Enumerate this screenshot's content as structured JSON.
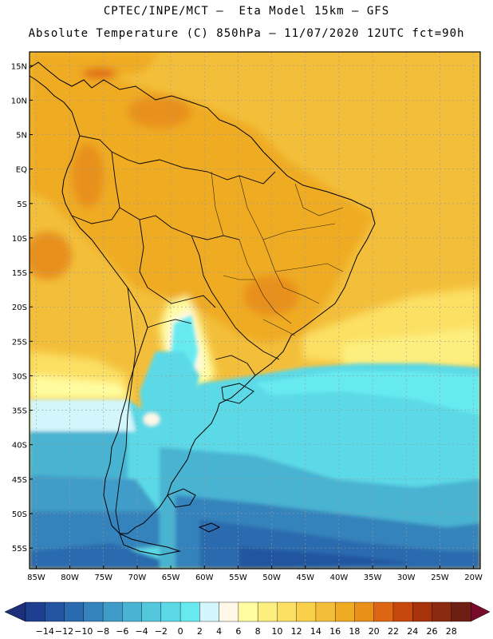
{
  "header": {
    "line1": "CPTEC/INPE/MCT –  Eta Model 15km – GFS",
    "line2": "Absolute Temperature (C) 850hPa – 11/07/2020 12UTC fct=90h"
  },
  "map": {
    "lon_range": [
      -86,
      -19
    ],
    "lat_range": [
      -58,
      17
    ],
    "lat_ticks": [
      {
        "value": 15,
        "label": "15N"
      },
      {
        "value": 10,
        "label": "10N"
      },
      {
        "value": 5,
        "label": "5N"
      },
      {
        "value": 0,
        "label": "EQ"
      },
      {
        "value": -5,
        "label": "5S"
      },
      {
        "value": -10,
        "label": "10S"
      },
      {
        "value": -15,
        "label": "15S"
      },
      {
        "value": -20,
        "label": "20S"
      },
      {
        "value": -25,
        "label": "25S"
      },
      {
        "value": -30,
        "label": "30S"
      },
      {
        "value": -35,
        "label": "35S"
      },
      {
        "value": -40,
        "label": "40S"
      },
      {
        "value": -45,
        "label": "45S"
      },
      {
        "value": -50,
        "label": "50S"
      },
      {
        "value": -55,
        "label": "55S"
      }
    ],
    "lon_ticks": [
      {
        "value": -85,
        "label": "85W"
      },
      {
        "value": -80,
        "label": "80W"
      },
      {
        "value": -75,
        "label": "75W"
      },
      {
        "value": -70,
        "label": "70W"
      },
      {
        "value": -65,
        "label": "65W"
      },
      {
        "value": -60,
        "label": "60W"
      },
      {
        "value": -55,
        "label": "55W"
      },
      {
        "value": -50,
        "label": "50W"
      },
      {
        "value": -45,
        "label": "45W"
      },
      {
        "value": -40,
        "label": "40W"
      },
      {
        "value": -35,
        "label": "35W"
      },
      {
        "value": -30,
        "label": "30W"
      },
      {
        "value": -25,
        "label": "25W"
      },
      {
        "value": -20,
        "label": "20W"
      }
    ]
  },
  "colorbar": {
    "labels": [
      "-14",
      "-12",
      "-10",
      "-8",
      "-6",
      "-4",
      "-2",
      "0",
      "2",
      "4",
      "6",
      "8",
      "10",
      "12",
      "14",
      "16",
      "18",
      "20",
      "22",
      "24",
      "26",
      "28"
    ],
    "colors": [
      "#1e3f8f",
      "#23549f",
      "#2a6aae",
      "#3483bc",
      "#3f9cc8",
      "#48b3d2",
      "#53c7dc",
      "#5cd9e6",
      "#66eaf0",
      "#d2f6fb",
      "#fff8e6",
      "#fffda0",
      "#fdef7f",
      "#fce063",
      "#f8d04a",
      "#f3bf3b",
      "#efab22",
      "#e8901a",
      "#de6513",
      "#c8470d",
      "#a8320a",
      "#8b2a10",
      "#6e1f13"
    ],
    "low_arrow_color": "#1d2f7a",
    "high_arrow_color": "#7a0a2a"
  }
}
